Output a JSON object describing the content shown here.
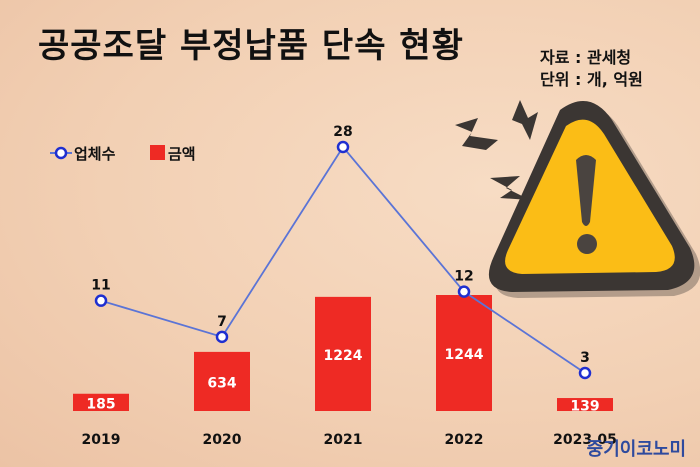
{
  "title": "공공조달 부정납품 단속 현황",
  "source": "자료 : 관세청",
  "unit": "단위 : 개, 억원",
  "watermark": "중기이코노미",
  "colors": {
    "bar": "#ee2a24",
    "line": "#5b74d6",
    "marker": "#1f2fd0"
  },
  "chart_data": {
    "type": "bar+line",
    "categories": [
      "2019",
      "2020",
      "2021",
      "2022",
      "2023.05"
    ],
    "series": [
      {
        "name": "업체수",
        "type": "line",
        "values": [
          11,
          7,
          28,
          12,
          3
        ]
      },
      {
        "name": "금액",
        "type": "bar",
        "values": [
          185,
          634,
          1224,
          1244,
          139
        ]
      }
    ],
    "legend_position": "top-left",
    "grid": false
  }
}
